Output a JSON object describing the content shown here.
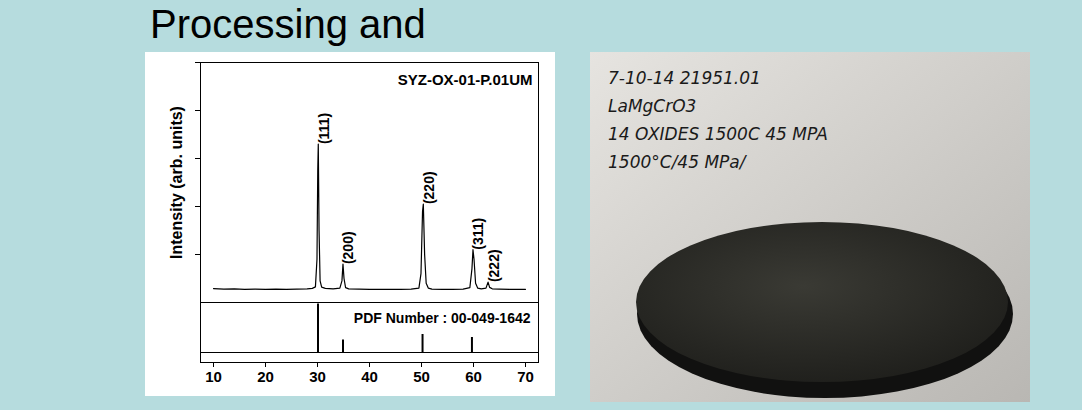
{
  "title": "Processing and",
  "chart_data": [
    {
      "type": "line",
      "title": "SYZ-OX-01-P.01UM",
      "ylabel": "Intensity (arb. units)",
      "color": "#000000",
      "x": [
        10,
        12,
        14,
        16,
        18,
        20,
        22,
        24,
        26,
        28,
        29,
        29.6,
        29.9,
        30.05,
        30.15,
        30.3,
        30.5,
        30.8,
        31.5,
        33,
        34.3,
        34.7,
        34.9,
        35.1,
        35.4,
        36,
        38,
        40,
        42,
        44,
        46,
        48,
        49.5,
        49.9,
        50.2,
        50.35,
        50.6,
        50.9,
        51.3,
        52,
        54,
        56,
        58,
        59.3,
        59.7,
        59.9,
        60.1,
        60.4,
        60.8,
        61.5,
        62.4,
        62.8,
        63.1,
        63.6,
        65,
        67,
        69,
        70
      ],
      "values": [
        5.8,
        5.6,
        5.7,
        5.5,
        5.6,
        5.5,
        5.6,
        5.5,
        5.6,
        5.7,
        5.9,
        6.5,
        18,
        55,
        66,
        30,
        9,
        6.4,
        5.9,
        5.7,
        6,
        9,
        16,
        10,
        6.2,
        5.7,
        5.6,
        5.5,
        5.5,
        5.5,
        5.5,
        5.6,
        6,
        12,
        38,
        41,
        20,
        8,
        6,
        5.6,
        5.5,
        5.5,
        5.6,
        6.2,
        14,
        22,
        18,
        8,
        6,
        5.7,
        6,
        8.5,
        6.3,
        5.7,
        5.6,
        5.5,
        5.5,
        5.5
      ],
      "xlim": [
        7.5,
        72.5
      ],
      "ylim": [
        0,
        100
      ],
      "yticks": [
        0,
        20,
        40,
        60,
        80,
        100
      ],
      "tick_labels": false,
      "annotations": [
        {
          "text": "(111)",
          "x": 30.15,
          "y": 66
        },
        {
          "text": "(200)",
          "x": 34.9,
          "y": 16
        },
        {
          "text": "(220)",
          "x": 50.35,
          "y": 41
        },
        {
          "text": "(311)",
          "x": 59.9,
          "y": 22
        },
        {
          "text": "(222)",
          "x": 62.8,
          "y": 8.5
        }
      ]
    },
    {
      "type": "stem",
      "title": "PDF Number : 00-049-1642",
      "color": "#000000",
      "x": [
        30.1,
        34.9,
        50.2,
        59.7
      ],
      "values": [
        97,
        25,
        36,
        30
      ],
      "xlim": [
        7.5,
        72.5
      ],
      "ylim": [
        -20,
        100
      ],
      "xticks": [
        10,
        20,
        30,
        40,
        50,
        60,
        70
      ],
      "tick_labels": "x"
    }
  ],
  "photo": {
    "label": [
      "7-10-14   21951.01",
      "LaMgCrO3",
      "14 OXIDES 1500C 45 MPA",
      "1500°C/45 MPa/"
    ]
  }
}
